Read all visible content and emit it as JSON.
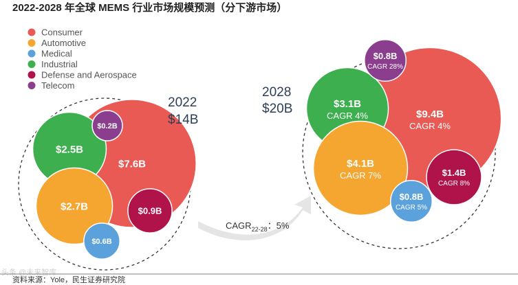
{
  "chart_data": {
    "type": "bubble",
    "title": "2022-2028 年全球 MEMS 行业市场规模预测（分下游市场）",
    "unit": "$B",
    "legend": [
      {
        "name": "Consumer",
        "color": "#e85a53"
      },
      {
        "name": "Automotive",
        "color": "#f5a630"
      },
      {
        "name": "Medical",
        "color": "#5ba2dc"
      },
      {
        "name": "Industrial",
        "color": "#3daf4f"
      },
      {
        "name": "Defense and Aerospace",
        "color": "#b0124a"
      },
      {
        "name": "Telecom",
        "color": "#8b3d8e"
      }
    ],
    "groups": [
      {
        "year": "2022",
        "total": "$14B",
        "segments": [
          {
            "name": "Consumer",
            "value": 7.6,
            "label": "$7.6B"
          },
          {
            "name": "Automotive",
            "value": 2.7,
            "label": "$2.7B"
          },
          {
            "name": "Industrial",
            "value": 2.5,
            "label": "$2.5B"
          },
          {
            "name": "Defense and Aerospace",
            "value": 0.9,
            "label": "$0.9B"
          },
          {
            "name": "Medical",
            "value": 0.6,
            "label": "$0.6B"
          },
          {
            "name": "Telecom",
            "value": 0.2,
            "label": "$0.2B"
          }
        ]
      },
      {
        "year": "2028",
        "total": "$20B",
        "segments": [
          {
            "name": "Consumer",
            "value": 9.4,
            "label": "$9.4B",
            "cagr": "CAGR 4%"
          },
          {
            "name": "Automotive",
            "value": 4.1,
            "label": "$4.1B",
            "cagr": "CAGR 7%"
          },
          {
            "name": "Industrial",
            "value": 3.1,
            "label": "$3.1B",
            "cagr": "CAGR 4%"
          },
          {
            "name": "Defense and Aerospace",
            "value": 1.4,
            "label": "$1.4B",
            "cagr": "CAGR 8%"
          },
          {
            "name": "Medical",
            "value": 0.8,
            "label": "$0.8B",
            "cagr": "CAGR 5%"
          },
          {
            "name": "Telecom",
            "value": 0.8,
            "label": "$0.8B",
            "cagr": "CAGR 28%"
          }
        ]
      }
    ],
    "overall_cagr": {
      "prefix": "CAGR",
      "subscript": "22-28",
      "suffix": "：5%"
    }
  },
  "source": "资料来源：Yole，民生证券研究院",
  "watermark": "头条 @未来智库"
}
